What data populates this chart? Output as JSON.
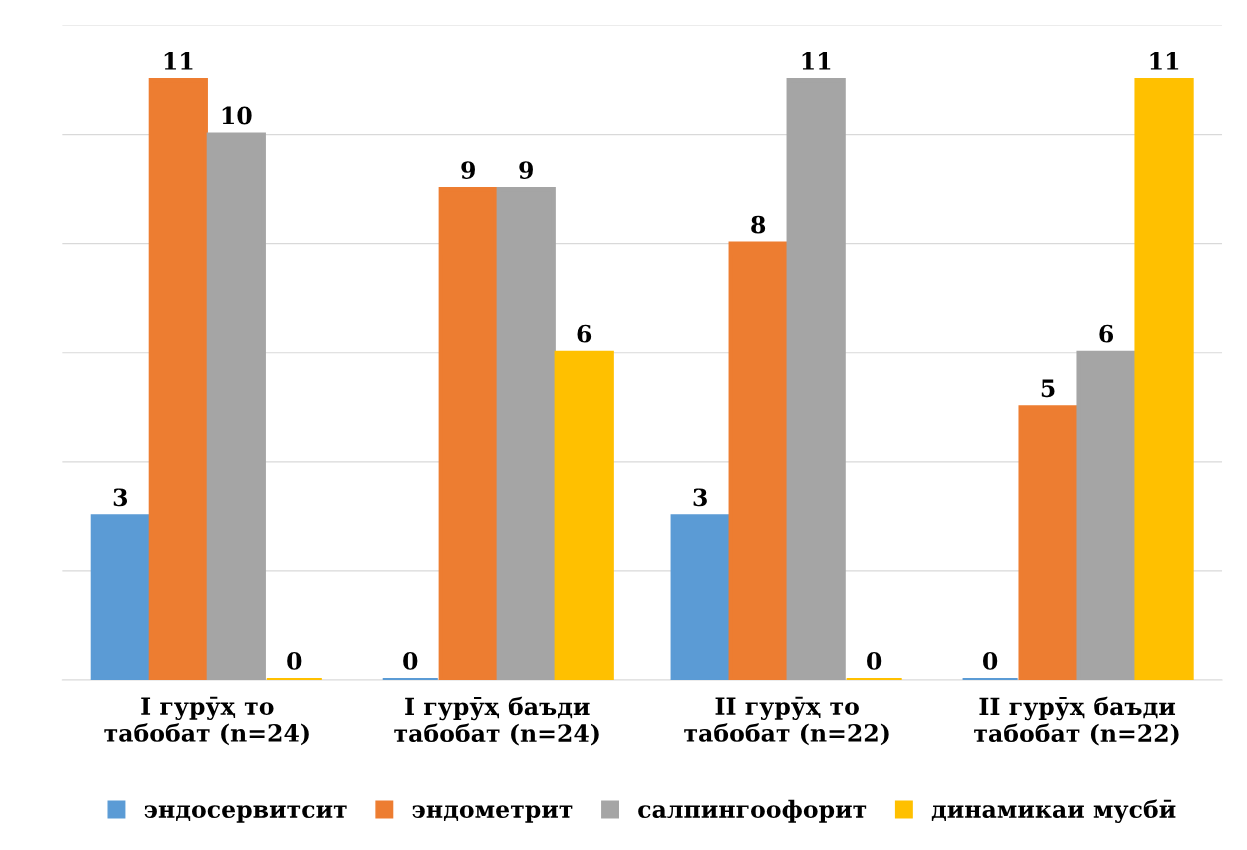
{
  "chart_data": {
    "type": "bar",
    "categories": [
      "I гурӯҳ то\nтабобат (n=24)",
      "I гурӯҳ баъди\nтабобат (n=24)",
      "II гурӯҳ то\nтабобат (n=22)",
      "II гурӯҳ баъди\nтабобат (n=22)"
    ],
    "series": [
      {
        "name": "эндосервитсит",
        "color": "#5b9bd5",
        "values": [
          3,
          0,
          3,
          0
        ]
      },
      {
        "name": "эндометрит",
        "color": "#ed7d31",
        "values": [
          11,
          9,
          8,
          5
        ]
      },
      {
        "name": "салпингоофорит",
        "color": "#a5a5a5",
        "values": [
          10,
          9,
          11,
          6
        ]
      },
      {
        "name": "динамикаи мусбӣ",
        "color": "#ffc000",
        "values": [
          0,
          6,
          0,
          11
        ]
      }
    ],
    "ylim": [
      0,
      12
    ],
    "yticks": [
      {
        "value": 0,
        "label": null
      },
      {
        "value": 2,
        "label": null
      },
      {
        "value": 4,
        "label": null
      },
      {
        "value": 6,
        "label": null
      },
      {
        "value": 8,
        "label": null
      },
      {
        "value": 10,
        "label": null
      },
      {
        "value": 12,
        "label": null
      }
    ],
    "grid": "y",
    "tick_labels": "x",
    "data_labels": true,
    "legend": "bottom"
  }
}
